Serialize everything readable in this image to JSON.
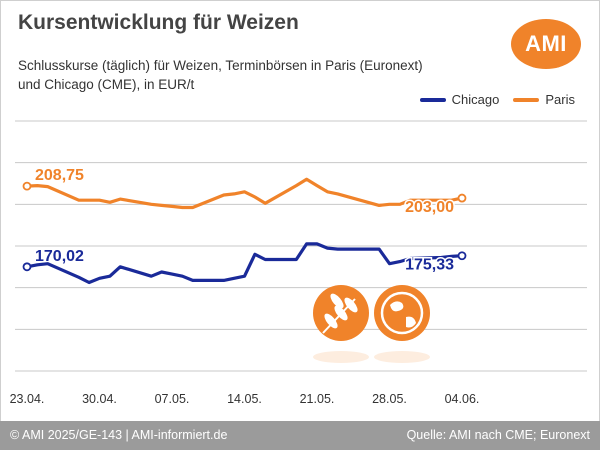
{
  "header": {
    "title": "Kursentwicklung für Weizen",
    "subtitle_line1": "Schlusskurse (täglich) für Weizen, Terminbörsen in Paris (Euronext)",
    "subtitle_line2": "und Chicago (CME), in EUR/t",
    "logo_text": "AMI"
  },
  "footer": {
    "left": "© AMI 2025/GE-143 | AMI-informiert.de",
    "right": "Quelle: AMI nach CME; Euronext"
  },
  "colors": {
    "chicago": "#1a2a99",
    "paris": "#f0832a",
    "grid": "#c8c8c8",
    "icon": "#f0832a"
  },
  "icons": [
    "wheat-icon",
    "globe-icon"
  ],
  "chart_data": {
    "type": "line",
    "x_ticks": [
      "23.04.",
      "30.04.",
      "07.05.",
      "14.05.",
      "21.05.",
      "28.05.",
      "04.06."
    ],
    "ylim": [
      120,
      240
    ],
    "grid": true,
    "legend_position": "top-right",
    "series": [
      {
        "name": "Chicago",
        "color": "#1a2a99",
        "start_label": "170,02",
        "end_label": "175,33",
        "x": [
          "23.04.",
          "24.04.",
          "25.04.",
          "28.04.",
          "29.04.",
          "30.04.",
          "01.05.",
          "02.05.",
          "05.05.",
          "06.05.",
          "07.05.",
          "08.05.",
          "09.05.",
          "12.05.",
          "13.05.",
          "14.05.",
          "15.05.",
          "16.05.",
          "19.05.",
          "20.05.",
          "21.05.",
          "22.05.",
          "23.05.",
          "27.05.",
          "28.05.",
          "29.05.",
          "30.05.",
          "02.06.",
          "03.06.",
          "04.06."
        ],
        "y": [
          170.02,
          171.0,
          171.5,
          165.0,
          162.5,
          164.5,
          165.5,
          170.0,
          165.5,
          167.5,
          166.5,
          165.5,
          163.5,
          163.5,
          164.5,
          165.5,
          176.0,
          173.5,
          173.5,
          181.0,
          181.0,
          179.0,
          178.5,
          178.5,
          171.5,
          172.5,
          174.0,
          174.5,
          175.0,
          175.33
        ]
      },
      {
        "name": "Paris",
        "color": "#f0832a",
        "start_label": "208,75",
        "end_label": "203,00",
        "x": [
          "23.04.",
          "24.04.",
          "25.04.",
          "28.04.",
          "29.04.",
          "30.04.",
          "01.05.",
          "02.05.",
          "05.05.",
          "06.05.",
          "07.05.",
          "08.05.",
          "09.05.",
          "12.05.",
          "13.05.",
          "14.05.",
          "15.05.",
          "16.05.",
          "19.05.",
          "20.05.",
          "21.05.",
          "22.05.",
          "23.05.",
          "27.05.",
          "28.05.",
          "29.05.",
          "30.05.",
          "02.06.",
          "03.06.",
          "04.06."
        ],
        "y": [
          208.75,
          209.0,
          208.5,
          202.0,
          202.0,
          202.0,
          201.0,
          202.5,
          200.0,
          199.5,
          199.0,
          198.5,
          198.5,
          204.5,
          205.0,
          206.0,
          203.5,
          200.5,
          209.0,
          212.0,
          209.0,
          206.0,
          205.0,
          199.5,
          200.0,
          200.0,
          202.0,
          202.0,
          202.0,
          203.0
        ]
      }
    ]
  }
}
